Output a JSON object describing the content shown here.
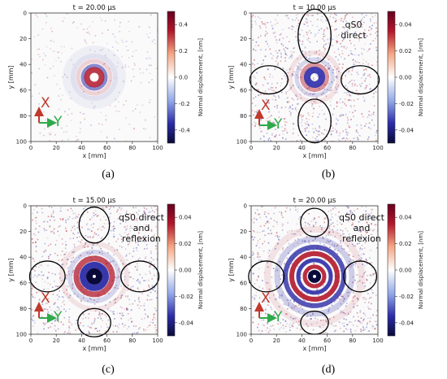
{
  "colors": {
    "positive": "#b2182b",
    "negative": "#2c2ca8",
    "neutral": "#ffffff",
    "x_arrow": "#c0392b",
    "y_arrow": "#2eaa4a",
    "ellipse": "#000000"
  },
  "chart_data": [
    {
      "type": "heatmap",
      "panel": "(a)",
      "title": "t = 20.00 µs",
      "xlabel": "x [mm]",
      "ylabel": "y [mm]",
      "xlim": [
        0,
        100
      ],
      "ylim": [
        100,
        0
      ],
      "xticks": [
        0,
        20,
        40,
        60,
        80,
        100
      ],
      "yticks": [
        0,
        20,
        40,
        60,
        80,
        100
      ],
      "colorbar": {
        "label": "Normal displacement, [nm]",
        "range": [
          -0.5,
          0.5
        ],
        "ticks": [
          "0.4",
          "0.2",
          "0.0",
          "-0.2",
          "-0.4"
        ]
      },
      "source_center_mm": [
        50,
        50
      ],
      "annotation": null,
      "axis_arrows": {
        "x_label": "X",
        "y_label": "Y"
      },
      "ellipses_mm": []
    },
    {
      "type": "heatmap",
      "panel": "(b)",
      "title": "t = 10.00 µs",
      "xlabel": "x [mm]",
      "ylabel": "y [mm]",
      "xlim": [
        0,
        100
      ],
      "ylim": [
        100,
        0
      ],
      "xticks": [
        0,
        20,
        40,
        60,
        80,
        100
      ],
      "yticks": [
        0,
        20,
        40,
        60,
        80,
        100
      ],
      "colorbar": {
        "label": "Normal displacement, [nm]",
        "range": [
          -0.05,
          0.05
        ],
        "ticks": [
          "0.04",
          "0.02",
          "0.00",
          "-0.02",
          "-0.04"
        ]
      },
      "source_center_mm": [
        50,
        50
      ],
      "annotation": [
        "qS0",
        "direct"
      ],
      "axis_arrows": {
        "x_label": "X",
        "y_label": "Y"
      },
      "ellipses_mm": [
        [
          50,
          18,
          13,
          21
        ],
        [
          14,
          52,
          15,
          11
        ],
        [
          86,
          52,
          15,
          11
        ],
        [
          50,
          84,
          13,
          17
        ]
      ]
    },
    {
      "type": "heatmap",
      "panel": "(c)",
      "title": "t = 15.00 µs",
      "xlabel": "x [mm]",
      "ylabel": "y [mm]",
      "xlim": [
        0,
        100
      ],
      "ylim": [
        100,
        0
      ],
      "xticks": [
        0,
        20,
        40,
        60,
        80,
        100
      ],
      "yticks": [
        0,
        20,
        40,
        60,
        80,
        100
      ],
      "colorbar": {
        "label": "Normal displacement, [nm]",
        "range": [
          -0.05,
          0.05
        ],
        "ticks": [
          "0.04",
          "0.02",
          "0.00",
          "-0.02",
          "-0.04"
        ]
      },
      "source_center_mm": [
        50,
        55
      ],
      "annotation": [
        "qS0 direct",
        "and",
        "reflexion"
      ],
      "axis_arrows": {
        "x_label": "X",
        "y_label": "Y"
      },
      "ellipses_mm": [
        [
          50,
          15,
          12,
          14
        ],
        [
          13,
          55,
          14,
          12
        ],
        [
          86,
          55,
          15,
          12
        ],
        [
          50,
          91,
          13,
          11
        ]
      ]
    },
    {
      "type": "heatmap",
      "panel": "(d)",
      "title": "t = 20.00 µs",
      "xlabel": "x [mm]",
      "ylabel": "y [mm]",
      "xlim": [
        0,
        100
      ],
      "ylim": [
        100,
        0
      ],
      "xticks": [
        0,
        20,
        40,
        60,
        80,
        100
      ],
      "yticks": [
        0,
        20,
        40,
        60,
        80,
        100
      ],
      "colorbar": {
        "label": "Normal displacement, [nm]",
        "range": [
          -0.05,
          0.05
        ],
        "ticks": [
          "0.04",
          "0.02",
          "0.00",
          "-0.02",
          "-0.04"
        ]
      },
      "source_center_mm": [
        50,
        55
      ],
      "annotation": [
        "qS0 direct",
        "and",
        "reflexion"
      ],
      "axis_arrows": {
        "x_label": "X",
        "y_label": "Y"
      },
      "ellipses_mm": [
        [
          50,
          13,
          11,
          11
        ],
        [
          12,
          55,
          14,
          12
        ],
        [
          86,
          55,
          13,
          12
        ],
        [
          50,
          91,
          11,
          9
        ]
      ]
    }
  ]
}
